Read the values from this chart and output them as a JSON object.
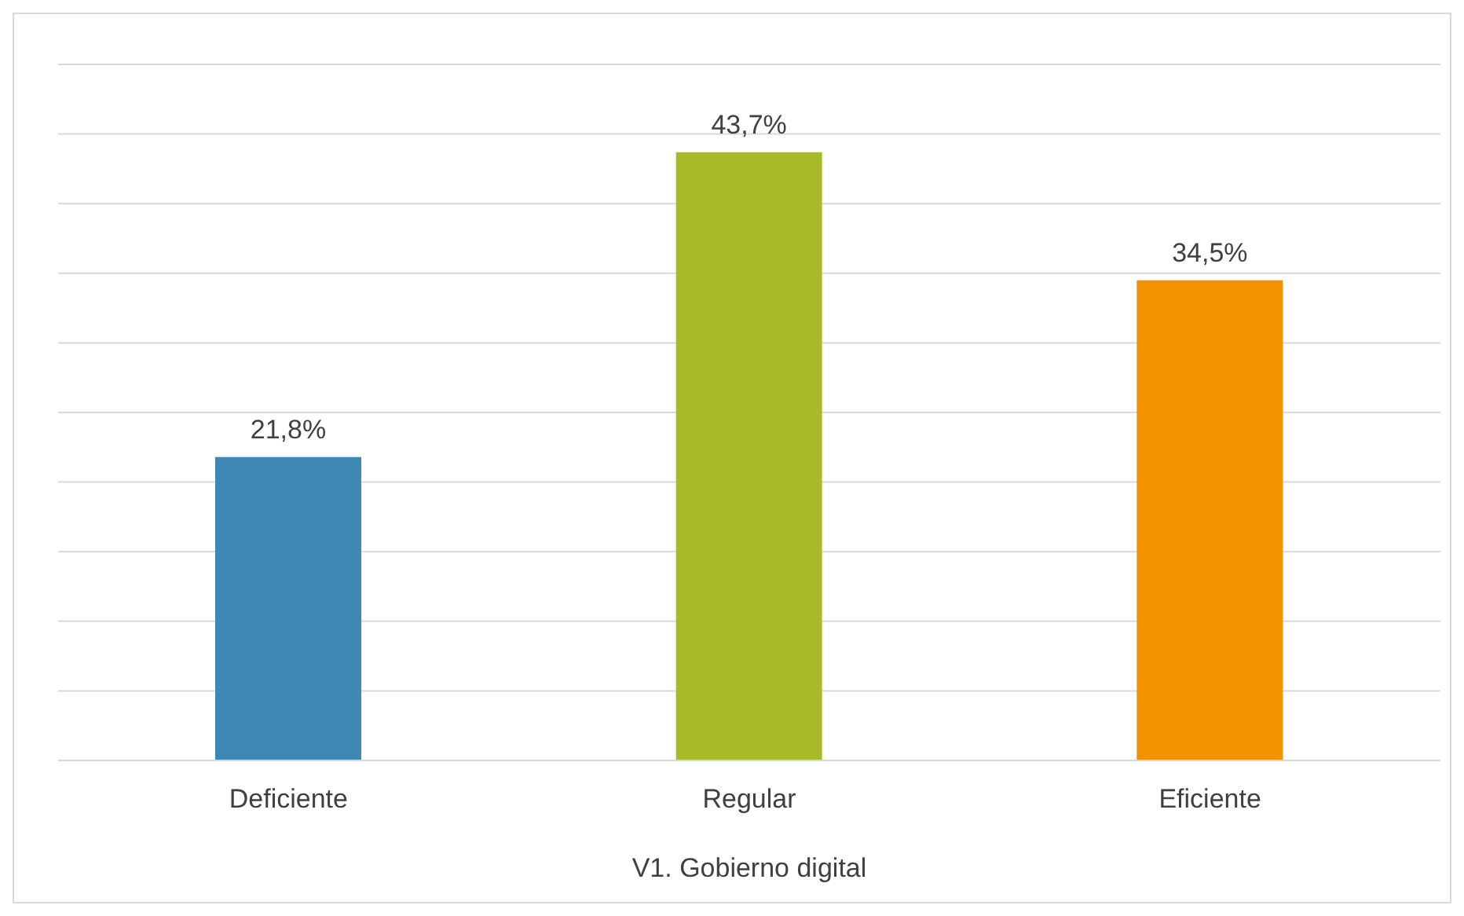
{
  "chart_data": {
    "type": "bar",
    "xlabel": "V1. Gobierno digital",
    "categories": [
      "Deficiente",
      "Regular",
      "Eficiente"
    ],
    "values": [
      21.8,
      43.7,
      34.5
    ],
    "colors": [
      "#3f88b4",
      "#a8b92a",
      "#f39200"
    ],
    "value_labels": [
      "21,8%",
      "43,7%",
      "34,5%"
    ],
    "ylim": [
      0,
      50
    ],
    "grid": "y",
    "legend": false,
    "tick_labels": "x"
  }
}
